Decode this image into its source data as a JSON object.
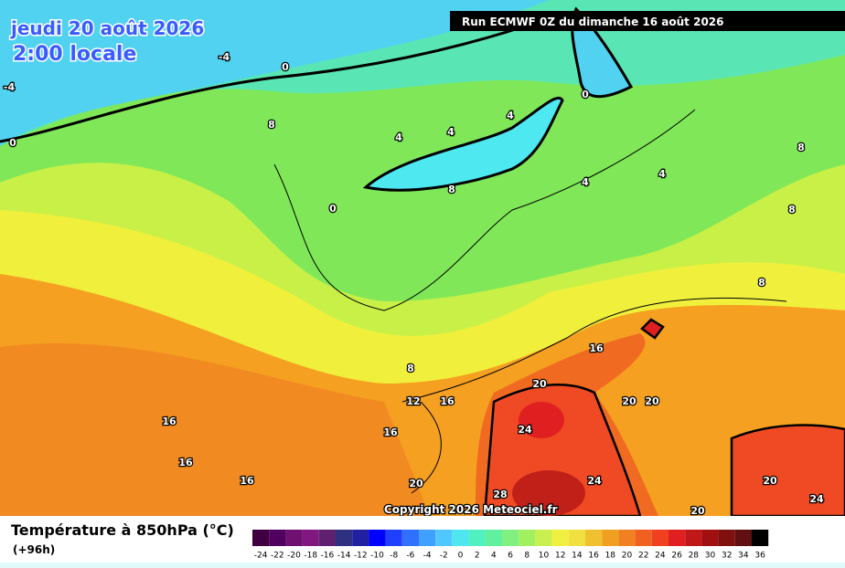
{
  "header": {
    "date": "jeudi 20 août 2026",
    "time": "2:00 locale",
    "run": "Run ECMWF 0Z du dimanche 16 août 2026"
  },
  "map": {
    "copyright": "Copyright 2026 Meteociel.fr",
    "contour_labels": [
      "-4",
      "-4",
      "0",
      "0",
      "0",
      "0",
      "4",
      "4",
      "4",
      "4",
      "4",
      "8",
      "8",
      "8",
      "8",
      "8",
      "8",
      "12",
      "16",
      "16",
      "16",
      "16",
      "16",
      "16",
      "20",
      "20",
      "20",
      "20",
      "20",
      "20",
      "24",
      "24",
      "24",
      "28"
    ]
  },
  "legend": {
    "title": "Température à 850hPa (°C)",
    "subtitle": "(+96h)",
    "levels": [
      {
        "value": -24,
        "color": "#400040"
      },
      {
        "value": -22,
        "color": "#500060"
      },
      {
        "value": -20,
        "color": "#701070"
      },
      {
        "value": -18,
        "color": "#801880"
      },
      {
        "value": -16,
        "color": "#602070"
      },
      {
        "value": -14,
        "color": "#303080"
      },
      {
        "value": -12,
        "color": "#2020a0"
      },
      {
        "value": -10,
        "color": "#0000ff"
      },
      {
        "value": -8,
        "color": "#2040ff"
      },
      {
        "value": -6,
        "color": "#3070ff"
      },
      {
        "value": -4,
        "color": "#40a0ff"
      },
      {
        "value": -2,
        "color": "#50c8ff"
      },
      {
        "value": 0,
        "color": "#50e6f0"
      },
      {
        "value": 2,
        "color": "#50f0c0"
      },
      {
        "value": 4,
        "color": "#60f0a0"
      },
      {
        "value": 6,
        "color": "#80f080"
      },
      {
        "value": 8,
        "color": "#a0f060"
      },
      {
        "value": 10,
        "color": "#c8f050"
      },
      {
        "value": 12,
        "color": "#f0f040"
      },
      {
        "value": 14,
        "color": "#f0e040"
      },
      {
        "value": 16,
        "color": "#f0c030"
      },
      {
        "value": 18,
        "color": "#f0a020"
      },
      {
        "value": 20,
        "color": "#f08020"
      },
      {
        "value": 22,
        "color": "#f06020"
      },
      {
        "value": 24,
        "color": "#f04020"
      },
      {
        "value": 26,
        "color": "#e02020"
      },
      {
        "value": 28,
        "color": "#c01818"
      },
      {
        "value": 30,
        "color": "#a01010"
      },
      {
        "value": 32,
        "color": "#801010"
      },
      {
        "value": 34,
        "color": "#601010"
      },
      {
        "value": 36,
        "color": "#000000"
      }
    ]
  }
}
